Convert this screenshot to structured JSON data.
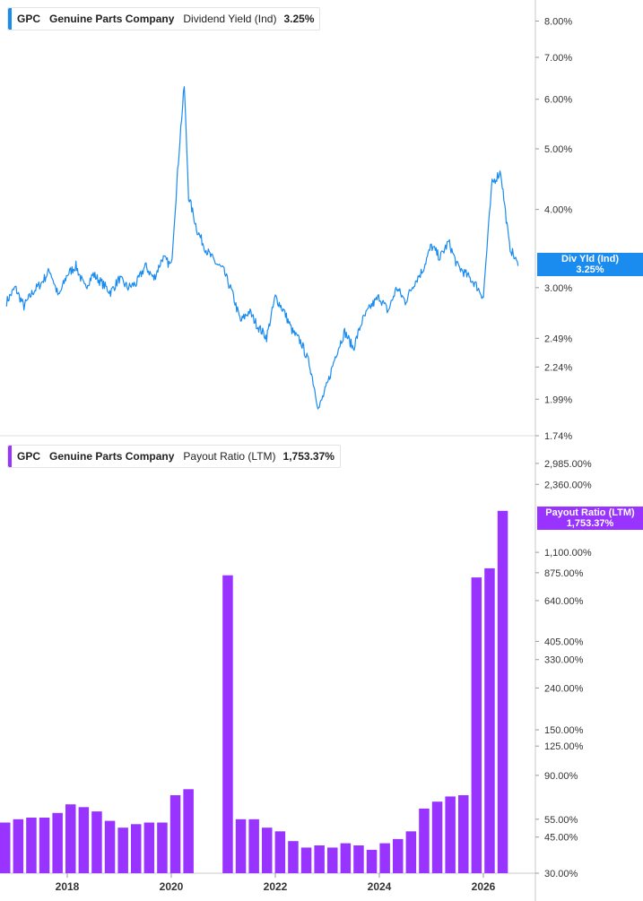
{
  "chart_data": [
    {
      "type": "line",
      "ticker": "GPC",
      "company": "Genuine Parts Company",
      "metric": "Dividend Yield (Ind)",
      "current_value": "3.25%",
      "badge_label": "Div Yld (Ind)",
      "badge_value": "3.25%",
      "color": "#1a8cf0",
      "y_scale": "log",
      "ylim": [
        1.74,
        8.2
      ],
      "y_ticks": [
        "8.00%",
        "7.00%",
        "6.00%",
        "5.00%",
        "4.00%",
        "3.00%",
        "2.49%",
        "2.24%",
        "1.99%",
        "1.74%"
      ],
      "y_tick_values": [
        8.0,
        7.0,
        6.0,
        5.0,
        4.0,
        3.0,
        2.49,
        2.24,
        1.99,
        1.74
      ],
      "series": [
        {
          "x": [
            "2016-11",
            "2017-01",
            "2017-03",
            "2017-05",
            "2017-07",
            "2017-09",
            "2017-11",
            "2018-01",
            "2018-03",
            "2018-05",
            "2018-07",
            "2018-09",
            "2018-11",
            "2019-01",
            "2019-03",
            "2019-05",
            "2019-07",
            "2019-09",
            "2019-11",
            "2020-01",
            "2020-03",
            "2020-04",
            "2020-05",
            "2020-07",
            "2020-09",
            "2020-11",
            "2021-01",
            "2021-03",
            "2021-05",
            "2021-07",
            "2021-09",
            "2021-11",
            "2022-01",
            "2022-03",
            "2022-05",
            "2022-07",
            "2022-09",
            "2022-11",
            "2023-01",
            "2023-03",
            "2023-05",
            "2023-07",
            "2023-09",
            "2023-11",
            "2024-01",
            "2024-03",
            "2024-05",
            "2024-07",
            "2024-09",
            "2024-11",
            "2025-01",
            "2025-03",
            "2025-05",
            "2025-07",
            "2025-09",
            "2025-11",
            "2026-01",
            "2026-02",
            "2026-03",
            "2026-05",
            "2026-07",
            "2026-09"
          ],
          "values": [
            2.85,
            3.0,
            2.8,
            2.95,
            3.05,
            3.2,
            2.9,
            3.15,
            3.25,
            3.0,
            3.15,
            3.05,
            2.95,
            3.1,
            3.0,
            3.05,
            3.25,
            3.1,
            3.35,
            3.25,
            5.2,
            6.3,
            4.2,
            3.7,
            3.45,
            3.3,
            3.2,
            2.95,
            2.65,
            2.75,
            2.6,
            2.5,
            2.9,
            2.75,
            2.55,
            2.45,
            2.25,
            1.92,
            2.1,
            2.35,
            2.55,
            2.4,
            2.65,
            2.8,
            2.9,
            2.75,
            3.0,
            2.85,
            3.05,
            3.2,
            3.5,
            3.35,
            3.55,
            3.25,
            3.15,
            3.05,
            2.9,
            3.6,
            4.4,
            4.6,
            3.5,
            3.25
          ]
        }
      ]
    },
    {
      "type": "bar",
      "ticker": "GPC",
      "company": "Genuine Parts Company",
      "metric": "Payout Ratio (LTM)",
      "current_value": "1,753.37%",
      "badge_label": "Payout Ratio (LTM)",
      "badge_value": "1,753.37%",
      "color": "#9933ff",
      "y_scale": "log",
      "ylim": [
        30.0,
        3200.0
      ],
      "y_ticks": [
        "2,985.00%",
        "2,360.00%",
        "1,100.00%",
        "875.00%",
        "640.00%",
        "405.00%",
        "330.00%",
        "240.00%",
        "150.00%",
        "125.00%",
        "90.00%",
        "55.00%",
        "45.00%",
        "30.00%"
      ],
      "y_tick_values": [
        2985,
        2360,
        1100,
        875,
        640,
        405,
        330,
        240,
        150,
        125,
        90,
        55,
        45,
        30
      ],
      "categories": [
        "2016Q4",
        "2017Q1",
        "2017Q2",
        "2017Q3",
        "2017Q4",
        "2018Q1",
        "2018Q2",
        "2018Q3",
        "2018Q4",
        "2019Q1",
        "2019Q2",
        "2019Q3",
        "2019Q4",
        "2020Q1",
        "2020Q2",
        "2020Q3",
        "2020Q4",
        "2021Q1",
        "2021Q2",
        "2021Q3",
        "2021Q4",
        "2022Q1",
        "2022Q2",
        "2022Q3",
        "2022Q4",
        "2023Q1",
        "2023Q2",
        "2023Q3",
        "2023Q4",
        "2024Q1",
        "2024Q2",
        "2024Q3",
        "2024Q4",
        "2025Q1",
        "2025Q2",
        "2025Q3",
        "2025Q4",
        "2026Q1",
        "2026Q2"
      ],
      "values": [
        53,
        55,
        56,
        56,
        59,
        65,
        63,
        60,
        54,
        50,
        52,
        53,
        53,
        72,
        77,
        null,
        null,
        850,
        55,
        55,
        50,
        48,
        43,
        40,
        41,
        40,
        42,
        41,
        39,
        42,
        44,
        48,
        62,
        67,
        71,
        72,
        830,
        920,
        1753.37
      ]
    }
  ],
  "x_axis": {
    "labels": [
      "2018",
      "2020",
      "2022",
      "2024",
      "2026"
    ]
  }
}
